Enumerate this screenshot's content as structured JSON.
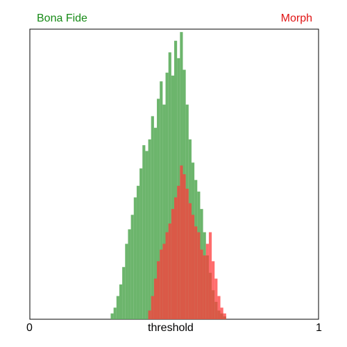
{
  "chart_data": {
    "type": "histogram",
    "xlabel": "threshold",
    "x_ticks": [
      "0",
      "1"
    ],
    "xlim": [
      0,
      1
    ],
    "ylim": [
      0,
      1
    ],
    "grid": false,
    "legend": "top-left and top-right corners",
    "bin_width": 0.01,
    "series": [
      {
        "name": "Bona Fide",
        "color": "#5cad5c",
        "bins": [
          [
            0.28,
            0.02
          ],
          [
            0.29,
            0.04
          ],
          [
            0.3,
            0.08
          ],
          [
            0.31,
            0.12
          ],
          [
            0.32,
            0.18
          ],
          [
            0.33,
            0.26
          ],
          [
            0.34,
            0.31
          ],
          [
            0.35,
            0.36
          ],
          [
            0.36,
            0.42
          ],
          [
            0.37,
            0.46
          ],
          [
            0.38,
            0.52
          ],
          [
            0.39,
            0.6
          ],
          [
            0.4,
            0.58
          ],
          [
            0.41,
            0.62
          ],
          [
            0.42,
            0.7
          ],
          [
            0.43,
            0.66
          ],
          [
            0.44,
            0.76
          ],
          [
            0.45,
            0.82
          ],
          [
            0.46,
            0.74
          ],
          [
            0.47,
            0.85
          ],
          [
            0.48,
            0.92
          ],
          [
            0.49,
            0.84
          ],
          [
            0.5,
            0.96
          ],
          [
            0.51,
            0.9
          ],
          [
            0.52,
            0.99
          ],
          [
            0.53,
            0.86
          ],
          [
            0.54,
            0.74
          ],
          [
            0.55,
            0.62
          ],
          [
            0.56,
            0.54
          ],
          [
            0.57,
            0.48
          ],
          [
            0.58,
            0.44
          ],
          [
            0.59,
            0.38
          ],
          [
            0.6,
            0.3
          ],
          [
            0.61,
            0.22
          ],
          [
            0.62,
            0.16
          ],
          [
            0.63,
            0.1
          ],
          [
            0.64,
            0.06
          ],
          [
            0.65,
            0.03
          ],
          [
            0.66,
            0.02
          ],
          [
            0.67,
            0.01
          ]
        ]
      },
      {
        "name": "Morph",
        "color": "#ff3b3b",
        "bins": [
          [
            0.41,
            0.03
          ],
          [
            0.42,
            0.08
          ],
          [
            0.43,
            0.14
          ],
          [
            0.44,
            0.2
          ],
          [
            0.45,
            0.24
          ],
          [
            0.46,
            0.26
          ],
          [
            0.47,
            0.3
          ],
          [
            0.48,
            0.33
          ],
          [
            0.49,
            0.38
          ],
          [
            0.5,
            0.42
          ],
          [
            0.51,
            0.46
          ],
          [
            0.52,
            0.53
          ],
          [
            0.53,
            0.5
          ],
          [
            0.54,
            0.45
          ],
          [
            0.55,
            0.4
          ],
          [
            0.56,
            0.36
          ],
          [
            0.57,
            0.32
          ],
          [
            0.58,
            0.3
          ],
          [
            0.59,
            0.24
          ],
          [
            0.6,
            0.22
          ],
          [
            0.61,
            0.26
          ],
          [
            0.62,
            0.3
          ],
          [
            0.63,
            0.2
          ],
          [
            0.64,
            0.14
          ],
          [
            0.65,
            0.08
          ],
          [
            0.66,
            0.04
          ],
          [
            0.67,
            0.02
          ]
        ]
      }
    ]
  },
  "legend": {
    "green_label": "Bona Fide",
    "red_label": "Morph"
  },
  "axis": {
    "tick_min": "0",
    "tick_max": "1",
    "xlabel": "threshold"
  }
}
